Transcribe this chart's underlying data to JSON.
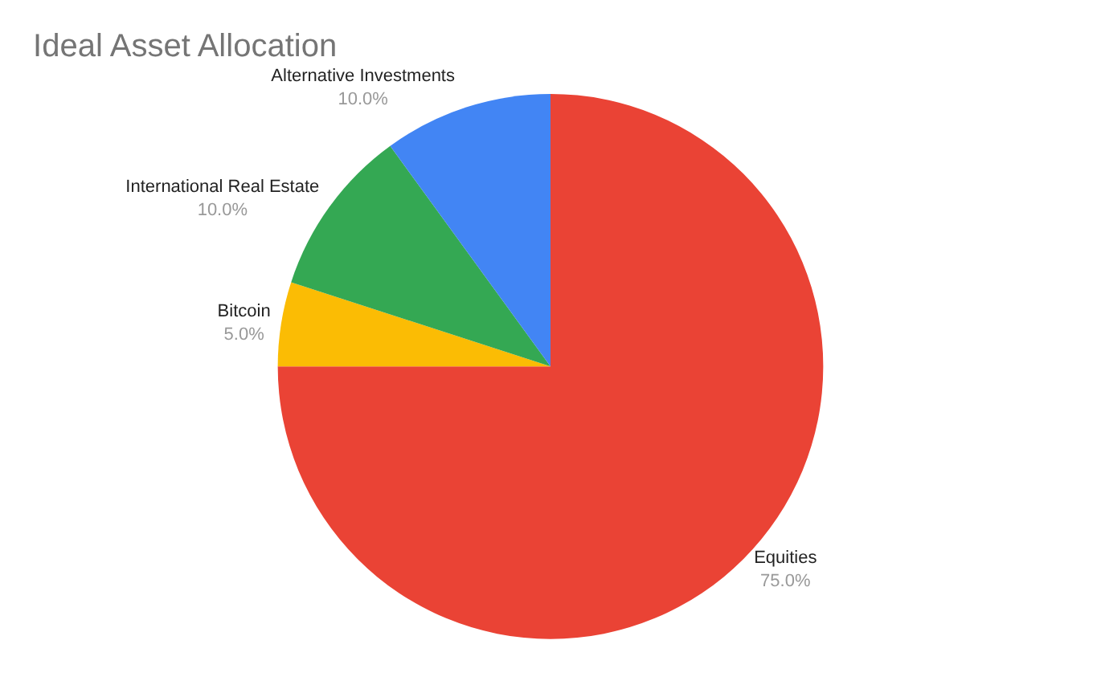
{
  "chart_data": {
    "type": "pie",
    "title": "Ideal Asset Allocation",
    "categories": [
      "Equities",
      "Bitcoin",
      "International Real Estate",
      "Alternative Investments"
    ],
    "values": [
      75,
      5,
      10,
      10
    ],
    "colors": [
      "#ea4335",
      "#fbbc04",
      "#34a853",
      "#4285f4"
    ],
    "value_labels": [
      "75.0%",
      "5.0%",
      "10.0%",
      "10.0%"
    ],
    "legend": false
  }
}
